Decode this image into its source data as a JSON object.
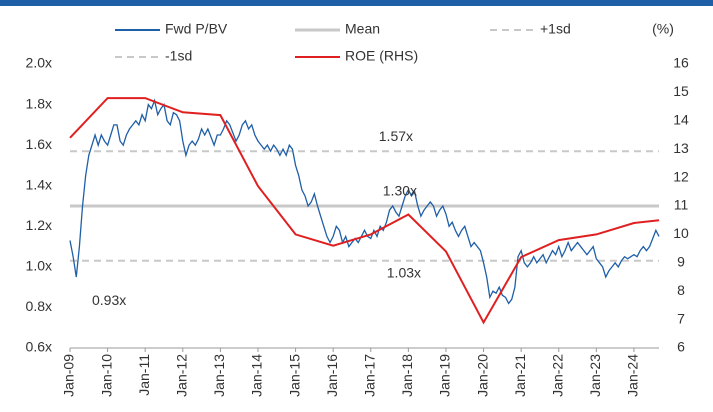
{
  "chart_data": {
    "type": "line",
    "x": [
      "Jan-09",
      "Feb-09",
      "Mar-09",
      "Apr-09",
      "May-09",
      "Jun-09",
      "Jul-09",
      "Aug-09",
      "Sep-09",
      "Oct-09",
      "Nov-09",
      "Dec-09",
      "Jan-10",
      "Feb-10",
      "Mar-10",
      "Apr-10",
      "May-10",
      "Jun-10",
      "Jul-10",
      "Aug-10",
      "Sep-10",
      "Oct-10",
      "Nov-10",
      "Dec-10",
      "Jan-11",
      "Feb-11",
      "Mar-11",
      "Apr-11",
      "May-11",
      "Jun-11",
      "Jul-11",
      "Aug-11",
      "Sep-11",
      "Oct-11",
      "Nov-11",
      "Dec-11",
      "Jan-12",
      "Feb-12",
      "Mar-12",
      "Apr-12",
      "May-12",
      "Jun-12",
      "Jul-12",
      "Aug-12",
      "Sep-12",
      "Oct-12",
      "Nov-12",
      "Dec-12",
      "Jan-13",
      "Feb-13",
      "Mar-13",
      "Apr-13",
      "May-13",
      "Jun-13",
      "Jul-13",
      "Aug-13",
      "Sep-13",
      "Oct-13",
      "Nov-13",
      "Dec-13",
      "Jan-14",
      "Feb-14",
      "Mar-14",
      "Apr-14",
      "May-14",
      "Jun-14",
      "Jul-14",
      "Aug-14",
      "Sep-14",
      "Oct-14",
      "Nov-14",
      "Dec-14",
      "Jan-15",
      "Feb-15",
      "Mar-15",
      "Apr-15",
      "May-15",
      "Jun-15",
      "Jul-15",
      "Aug-15",
      "Sep-15",
      "Oct-15",
      "Nov-15",
      "Dec-15",
      "Jan-16",
      "Feb-16",
      "Mar-16",
      "Apr-16",
      "May-16",
      "Jun-16",
      "Jul-16",
      "Aug-16",
      "Sep-16",
      "Oct-16",
      "Nov-16",
      "Dec-16",
      "Jan-17",
      "Feb-17",
      "Mar-17",
      "Apr-17",
      "May-17",
      "Jun-17",
      "Jul-17",
      "Aug-17",
      "Sep-17",
      "Oct-17",
      "Nov-17",
      "Dec-17",
      "Jan-18",
      "Feb-18",
      "Mar-18",
      "Apr-18",
      "May-18",
      "Jun-18",
      "Jul-18",
      "Aug-18",
      "Sep-18",
      "Oct-18",
      "Nov-18",
      "Dec-18",
      "Jan-19",
      "Feb-19",
      "Mar-19",
      "Apr-19",
      "May-19",
      "Jun-19",
      "Jul-19",
      "Aug-19",
      "Sep-19",
      "Oct-19",
      "Nov-19",
      "Dec-19",
      "Jan-20",
      "Feb-20",
      "Mar-20",
      "Apr-20",
      "May-20",
      "Jun-20",
      "Jul-20",
      "Aug-20",
      "Sep-20",
      "Oct-20",
      "Nov-20",
      "Dec-20",
      "Jan-21",
      "Feb-21",
      "Mar-21",
      "Apr-21",
      "May-21",
      "Jun-21",
      "Jul-21",
      "Aug-21",
      "Sep-21",
      "Oct-21",
      "Nov-21",
      "Dec-21",
      "Jan-22",
      "Feb-22",
      "Mar-22",
      "Apr-22",
      "May-22",
      "Jun-22",
      "Jul-22",
      "Aug-22",
      "Sep-22",
      "Oct-22",
      "Nov-22",
      "Dec-22",
      "Jan-23",
      "Feb-23",
      "Mar-23",
      "Apr-23",
      "May-23",
      "Jun-23",
      "Jul-23",
      "Aug-23",
      "Sep-23",
      "Oct-23",
      "Nov-23",
      "Dec-23",
      "Jan-24",
      "Feb-24",
      "Mar-24",
      "Apr-24",
      "May-24",
      "Jun-24",
      "Jul-24",
      "Aug-24",
      "Sep-24"
    ],
    "series": [
      {
        "name": "Fwd P/BV",
        "color": "#1f5fa8",
        "values": [
          1.13,
          1.05,
          0.95,
          1.1,
          1.3,
          1.45,
          1.55,
          1.6,
          1.65,
          1.6,
          1.65,
          1.62,
          1.6,
          1.65,
          1.7,
          1.7,
          1.62,
          1.6,
          1.65,
          1.68,
          1.7,
          1.72,
          1.7,
          1.75,
          1.72,
          1.8,
          1.78,
          1.82,
          1.75,
          1.78,
          1.8,
          1.72,
          1.7,
          1.76,
          1.75,
          1.72,
          1.62,
          1.55,
          1.6,
          1.62,
          1.6,
          1.63,
          1.68,
          1.65,
          1.68,
          1.64,
          1.6,
          1.65,
          1.65,
          1.68,
          1.72,
          1.7,
          1.66,
          1.62,
          1.65,
          1.7,
          1.72,
          1.68,
          1.7,
          1.65,
          1.62,
          1.6,
          1.58,
          1.6,
          1.57,
          1.6,
          1.58,
          1.55,
          1.58,
          1.55,
          1.6,
          1.58,
          1.5,
          1.45,
          1.38,
          1.35,
          1.3,
          1.32,
          1.36,
          1.3,
          1.25,
          1.2,
          1.15,
          1.12,
          1.15,
          1.2,
          1.18,
          1.12,
          1.15,
          1.1,
          1.12,
          1.14,
          1.12,
          1.15,
          1.18,
          1.15,
          1.14,
          1.18,
          1.15,
          1.2,
          1.18,
          1.22,
          1.28,
          1.3,
          1.27,
          1.25,
          1.3,
          1.35,
          1.38,
          1.35,
          1.37,
          1.3,
          1.25,
          1.28,
          1.3,
          1.32,
          1.3,
          1.25,
          1.28,
          1.3,
          1.26,
          1.2,
          1.22,
          1.18,
          1.15,
          1.18,
          1.2,
          1.15,
          1.1,
          1.12,
          1.1,
          1.08,
          1.02,
          0.95,
          0.85,
          0.88,
          0.87,
          0.9,
          0.86,
          0.85,
          0.82,
          0.84,
          0.9,
          1.05,
          1.08,
          1.02,
          1.0,
          1.02,
          1.05,
          1.02,
          1.04,
          1.06,
          1.02,
          1.05,
          1.08,
          1.06,
          1.1,
          1.05,
          1.08,
          1.12,
          1.08,
          1.1,
          1.12,
          1.1,
          1.08,
          1.06,
          1.08,
          1.1,
          1.04,
          1.02,
          1.0,
          0.95,
          0.98,
          1.0,
          1.02,
          1.0,
          1.03,
          1.05,
          1.04,
          1.05,
          1.06,
          1.05,
          1.08,
          1.1,
          1.08,
          1.1,
          1.14,
          1.18,
          1.15
        ]
      },
      {
        "name": "Mean",
        "color": "#c8c8c8",
        "value": 1.3
      },
      {
        "name": "+1sd",
        "color": "#c8c8c8",
        "dashed": true,
        "value": 1.57
      },
      {
        "name": "-1sd",
        "color": "#c8c8c8",
        "dashed": true,
        "value": 1.03
      },
      {
        "name": "ROE (RHS)",
        "color": "#e02020",
        "axis": "y2",
        "x": [
          "Jan-09",
          "Jan-10",
          "Jan-11",
          "Jan-12",
          "Jan-13",
          "Jan-14",
          "Jan-15",
          "Jan-16",
          "Jan-17",
          "Jan-18",
          "Jan-19",
          "Jan-20",
          "Jan-21",
          "Jan-22",
          "Jan-23",
          "Jan-24",
          "Sep-24"
        ],
        "values": [
          13.4,
          14.8,
          14.8,
          14.3,
          14.2,
          11.7,
          10.0,
          9.6,
          10.0,
          10.7,
          9.4,
          6.9,
          9.2,
          9.8,
          10.0,
          10.4,
          10.5
        ]
      }
    ],
    "ylim": [
      0.6,
      2.0
    ],
    "yticks": [
      {
        "value": 0.6,
        "label": "0.6x"
      },
      {
        "value": 0.8,
        "label": "0.8x"
      },
      {
        "value": 1.0,
        "label": "1.0x"
      },
      {
        "value": 1.2,
        "label": "1.2x"
      },
      {
        "value": 1.4,
        "label": "1.4x"
      },
      {
        "value": 1.6,
        "label": "1.6x"
      },
      {
        "value": 1.8,
        "label": "1.8x"
      },
      {
        "value": 2.0,
        "label": "2.0x"
      }
    ],
    "y2lim": [
      6,
      16
    ],
    "y2ticks": [
      6,
      7,
      8,
      9,
      10,
      11,
      12,
      13,
      14,
      15,
      16
    ],
    "y2label": "(%)",
    "annotations": [
      {
        "text": "1.57x",
        "x": "Jan-17",
        "y": 1.57
      },
      {
        "text": "1.30x",
        "x": "Jan-17",
        "y": 1.3
      },
      {
        "text": "1.03x",
        "x": "Jan-17",
        "y": 1.03
      },
      {
        "text": "0.93x",
        "x": "Jan-09",
        "y": 0.93
      }
    ]
  }
}
